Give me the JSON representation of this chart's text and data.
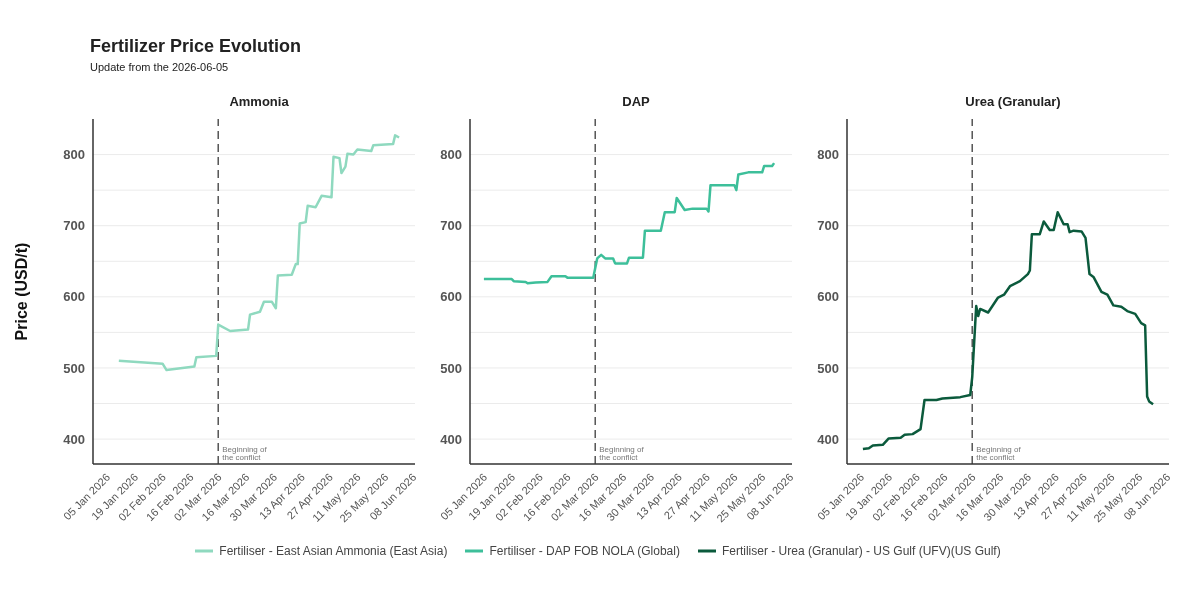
{
  "chart_data": [
    {
      "type": "line",
      "title": "Ammonia",
      "ylabel": "Price (USD/t)",
      "annotations": [
        "Fertilizer Price Evolution",
        "Update from the 2026-06-05"
      ],
      "legend": "bottom",
      "grid": "y",
      "xlim": [
        "2025-12-29",
        "2026-06-09"
      ],
      "ylim": [
        365,
        850
      ],
      "xticks": [
        {
          "value": "2026-01-05",
          "label": "05 Jan 2026"
        },
        {
          "value": "2026-01-19",
          "label": "19 Jan 2026"
        },
        {
          "value": "2026-02-02",
          "label": "02 Feb 2026"
        },
        {
          "value": "2026-02-16",
          "label": "16 Feb 2026"
        },
        {
          "value": "2026-03-02",
          "label": "02 Mar 2026"
        },
        {
          "value": "2026-03-16",
          "label": "16 Mar 2026"
        },
        {
          "value": "2026-03-30",
          "label": "30 Mar 2026"
        },
        {
          "value": "2026-04-13",
          "label": "13 Apr 2026"
        },
        {
          "value": "2026-04-27",
          "label": "27 Apr 2026"
        },
        {
          "value": "2026-05-11",
          "label": "11 May 2026"
        },
        {
          "value": "2026-05-25",
          "label": "25 May 2026"
        },
        {
          "value": "2026-06-08",
          "label": "08 Jun 2026"
        }
      ],
      "yticks": [
        400,
        {
          "value": 450,
          "label": null
        },
        500,
        {
          "value": 550,
          "label": null
        },
        600,
        {
          "value": 650,
          "label": null
        },
        700,
        {
          "value": 750,
          "label": null
        },
        800
      ],
      "ref_lines": [
        {
          "axis": "x",
          "value": "2026-03-02",
          "label": "Beginning of the conflict",
          "color": "#555555",
          "line_style": "dashed"
        }
      ],
      "series": [
        {
          "name": "Fertiliser - East Asian Ammonia (East Asia)",
          "color": "#8fd9bf",
          "x": [
            "2026-01-11",
            "2026-02-02",
            "2026-02-04",
            "2026-02-18",
            "2026-02-19",
            "2026-03-01",
            "2026-03-02",
            "2026-03-08",
            "2026-03-17",
            "2026-03-18",
            "2026-03-23",
            "2026-03-25",
            "2026-03-29",
            "2026-03-31",
            "2026-04-01",
            "2026-04-08",
            "2026-04-10",
            "2026-04-11",
            "2026-04-12",
            "2026-04-15",
            "2026-04-16",
            "2026-04-20",
            "2026-04-23",
            "2026-04-28",
            "2026-04-29",
            "2026-05-02",
            "2026-05-03",
            "2026-05-05",
            "2026-05-06",
            "2026-05-09",
            "2026-05-11",
            "2026-05-18",
            "2026-05-19",
            "2026-05-29",
            "2026-05-30",
            "2026-06-01"
          ],
          "values": [
            510,
            506,
            497,
            502,
            515,
            517,
            561,
            552,
            554,
            575,
            579,
            593,
            593,
            584,
            630,
            631,
            646,
            646,
            703,
            705,
            728,
            726,
            742,
            740,
            797,
            795,
            774,
            783,
            801,
            800,
            807,
            805,
            813,
            815,
            827,
            824
          ]
        }
      ]
    },
    {
      "type": "line",
      "title": "DAP",
      "legend": "bottom",
      "grid": "y",
      "xlim": [
        "2025-12-29",
        "2026-06-09"
      ],
      "ylim": [
        365,
        850
      ],
      "xticks": [
        {
          "value": "2026-01-05",
          "label": "05 Jan 2026"
        },
        {
          "value": "2026-01-19",
          "label": "19 Jan 2026"
        },
        {
          "value": "2026-02-02",
          "label": "02 Feb 2026"
        },
        {
          "value": "2026-02-16",
          "label": "16 Feb 2026"
        },
        {
          "value": "2026-03-02",
          "label": "02 Mar 2026"
        },
        {
          "value": "2026-03-16",
          "label": "16 Mar 2026"
        },
        {
          "value": "2026-03-30",
          "label": "30 Mar 2026"
        },
        {
          "value": "2026-04-13",
          "label": "13 Apr 2026"
        },
        {
          "value": "2026-04-27",
          "label": "27 Apr 2026"
        },
        {
          "value": "2026-05-11",
          "label": "11 May 2026"
        },
        {
          "value": "2026-05-25",
          "label": "25 May 2026"
        },
        {
          "value": "2026-06-08",
          "label": "08 Jun 2026"
        }
      ],
      "yticks": [
        400,
        {
          "value": 450,
          "label": null
        },
        500,
        {
          "value": 550,
          "label": null
        },
        600,
        {
          "value": 650,
          "label": null
        },
        700,
        {
          "value": 750,
          "label": null
        },
        800
      ],
      "ref_lines": [
        {
          "axis": "x",
          "value": "2026-03-02",
          "label": "Beginning of the conflict",
          "color": "#555555",
          "line_style": "dashed"
        }
      ],
      "series": [
        {
          "name": "Fertiliser - DAP FOB NOLA (Global)",
          "color": "#3dbf9a",
          "x": [
            "2026-01-05",
            "2026-01-19",
            "2026-01-20",
            "2026-01-26",
            "2026-01-27",
            "2026-01-31",
            "2026-02-06",
            "2026-02-08",
            "2026-02-15",
            "2026-02-16",
            "2026-03-01",
            "2026-03-03",
            "2026-03-05",
            "2026-03-07",
            "2026-03-11",
            "2026-03-12",
            "2026-03-18",
            "2026-03-19",
            "2026-03-26",
            "2026-03-27",
            "2026-04-04",
            "2026-04-06",
            "2026-04-11",
            "2026-04-12",
            "2026-04-16",
            "2026-04-20",
            "2026-04-27",
            "2026-04-28",
            "2026-04-29",
            "2026-05-11",
            "2026-05-12",
            "2026-05-13",
            "2026-05-18",
            "2026-05-25",
            "2026-05-26",
            "2026-05-30",
            "2026-05-31"
          ],
          "values": [
            625,
            625,
            622,
            621,
            619,
            620,
            621,
            629,
            629,
            627,
            627,
            654,
            659,
            654,
            654,
            647,
            647,
            655,
            655,
            693,
            693,
            719,
            719,
            739,
            722,
            724,
            724,
            720,
            757,
            757,
            750,
            772,
            775,
            775,
            784,
            784,
            788
          ]
        }
      ]
    },
    {
      "type": "line",
      "title": "Urea (Granular)",
      "legend": "bottom",
      "grid": "y",
      "xlim": [
        "2025-12-29",
        "2026-06-09"
      ],
      "ylim": [
        365,
        850
      ],
      "xticks": [
        {
          "value": "2026-01-05",
          "label": "05 Jan 2026"
        },
        {
          "value": "2026-01-19",
          "label": "19 Jan 2026"
        },
        {
          "value": "2026-02-02",
          "label": "02 Feb 2026"
        },
        {
          "value": "2026-02-16",
          "label": "16 Feb 2026"
        },
        {
          "value": "2026-03-02",
          "label": "02 Mar 2026"
        },
        {
          "value": "2026-03-16",
          "label": "16 Mar 2026"
        },
        {
          "value": "2026-03-30",
          "label": "30 Mar 2026"
        },
        {
          "value": "2026-04-13",
          "label": "13 Apr 2026"
        },
        {
          "value": "2026-04-27",
          "label": "27 Apr 2026"
        },
        {
          "value": "2026-05-11",
          "label": "11 May 2026"
        },
        {
          "value": "2026-05-25",
          "label": "25 May 2026"
        },
        {
          "value": "2026-06-08",
          "label": "08 Jun 2026"
        }
      ],
      "yticks": [
        400,
        {
          "value": 450,
          "label": null
        },
        500,
        {
          "value": 550,
          "label": null
        },
        600,
        {
          "value": 650,
          "label": null
        },
        700,
        {
          "value": 750,
          "label": null
        },
        800
      ],
      "ref_lines": [
        {
          "axis": "x",
          "value": "2026-03-02",
          "label": "Beginning of the conflict",
          "color": "#555555",
          "line_style": "dashed"
        }
      ],
      "series": [
        {
          "name": "Fertiliser - Urea (Granular) - US Gulf (UFV)(US Gulf)",
          "color": "#0b5a3c",
          "x": [
            "2026-01-06",
            "2026-01-09",
            "2026-01-11",
            "2026-01-16",
            "2026-01-19",
            "2026-01-25",
            "2026-01-27",
            "2026-01-31",
            "2026-02-04",
            "2026-02-06",
            "2026-02-12",
            "2026-02-15",
            "2026-02-24",
            "2026-03-01",
            "2026-03-02",
            "2026-03-04",
            "2026-03-05",
            "2026-03-06",
            "2026-03-10",
            "2026-03-15",
            "2026-03-18",
            "2026-03-21",
            "2026-03-26",
            "2026-03-30",
            "2026-03-31",
            "2026-04-01",
            "2026-04-05",
            "2026-04-07",
            "2026-04-10",
            "2026-04-12",
            "2026-04-14",
            "2026-04-17",
            "2026-04-19",
            "2026-04-20",
            "2026-04-22",
            "2026-04-26",
            "2026-04-28",
            "2026-04-30",
            "2026-05-02",
            "2026-05-06",
            "2026-05-09",
            "2026-05-12",
            "2026-05-16",
            "2026-05-19",
            "2026-05-23",
            "2026-05-26",
            "2026-05-28",
            "2026-05-29",
            "2026-05-30",
            "2026-06-01"
          ],
          "values": [
            386,
            387,
            391,
            392,
            401,
            402,
            406,
            407,
            414,
            455,
            455,
            457,
            459,
            462,
            487,
            587,
            573,
            583,
            578,
            599,
            603,
            615,
            622,
            632,
            637,
            688,
            688,
            706,
            694,
            694,
            719,
            702,
            702,
            691,
            693,
            692,
            683,
            632,
            628,
            607,
            603,
            588,
            586,
            580,
            576,
            563,
            560,
            460,
            453,
            449
          ]
        }
      ]
    }
  ]
}
